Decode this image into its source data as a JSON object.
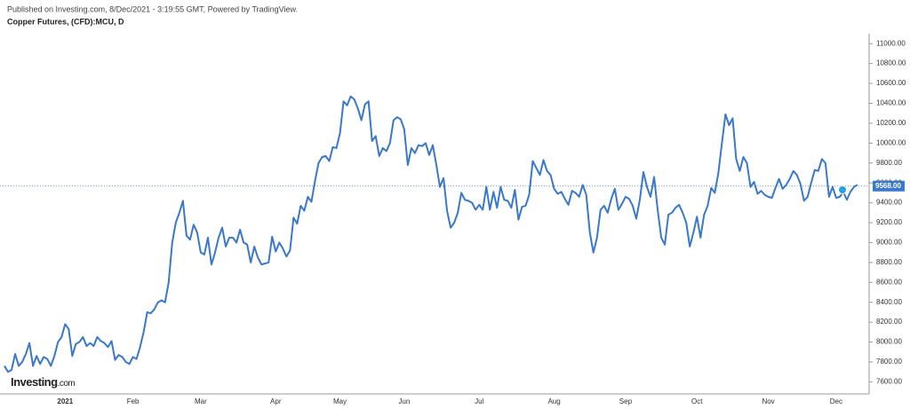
{
  "chart_data": {
    "type": "line",
    "published": "Published on Investing.com, 8/Dec/2021 - 3:19:55 GMT, Powered by TradingView.",
    "title": "Copper Futures, (CFD):MCU, D",
    "logo": {
      "brand": "Investing",
      "suffix": ".com"
    },
    "color": "#3a78c9",
    "categories": [
      null,
      null,
      null,
      null,
      null,
      null,
      null,
      null,
      null,
      null,
      null,
      null,
      null,
      null,
      null,
      null,
      null,
      "2021",
      null,
      null,
      null,
      null,
      null,
      null,
      null,
      null,
      null,
      null,
      null,
      null,
      null,
      null,
      null,
      null,
      null,
      null,
      "Feb",
      null,
      null,
      null,
      null,
      null,
      null,
      null,
      null,
      null,
      null,
      null,
      null,
      null,
      null,
      null,
      null,
      null,
      null,
      "Mar",
      null,
      null,
      null,
      null,
      null,
      null,
      null,
      null,
      null,
      null,
      null,
      null,
      null,
      null,
      null,
      null,
      null,
      null,
      null,
      null,
      "Apr",
      null,
      null,
      null,
      null,
      null,
      null,
      null,
      null,
      null,
      null,
      null,
      null,
      null,
      null,
      null,
      null,
      null,
      "May",
      null,
      null,
      null,
      null,
      null,
      null,
      null,
      null,
      null,
      null,
      null,
      null,
      null,
      null,
      null,
      null,
      null,
      "Jun",
      null,
      null,
      null,
      null,
      null,
      null,
      null,
      null,
      null,
      null,
      null,
      null,
      null,
      null,
      null,
      null,
      null,
      null,
      null,
      null,
      "Jul",
      null,
      null,
      null,
      null,
      null,
      null,
      null,
      null,
      null,
      null,
      null,
      null,
      null,
      null,
      null,
      null,
      null,
      null,
      null,
      null,
      "Aug",
      null,
      null,
      null,
      null,
      null,
      null,
      null,
      null,
      null,
      null,
      null,
      null,
      null,
      null,
      null,
      null,
      null,
      null,
      null,
      "Sep",
      null,
      null,
      null,
      null,
      null,
      null,
      null,
      null,
      null,
      null,
      null,
      null,
      null,
      null,
      null,
      null,
      null,
      null,
      null,
      "Oct",
      null,
      null,
      null,
      null,
      null,
      null,
      null,
      null,
      null,
      null,
      null,
      null,
      null,
      null,
      null,
      null,
      null,
      null,
      null,
      "Nov",
      null,
      null,
      null,
      null,
      null,
      null,
      null,
      null,
      null,
      null,
      null,
      null,
      null,
      null,
      null,
      null,
      null,
      null,
      "Dec",
      null,
      null,
      null,
      null,
      null,
      null
    ],
    "values": [
      7760,
      7700,
      7720,
      7880,
      7760,
      7800,
      7880,
      7990,
      7760,
      7860,
      7780,
      7850,
      7830,
      7760,
      7860,
      8000,
      8050,
      8180,
      8130,
      7860,
      7980,
      8000,
      8050,
      7960,
      7990,
      7960,
      8050,
      8010,
      7990,
      7950,
      8010,
      7820,
      7870,
      7850,
      7800,
      7780,
      7850,
      7830,
      7950,
      8100,
      8300,
      8290,
      8330,
      8400,
      8420,
      8400,
      8600,
      9000,
      9200,
      9300,
      9420,
      9070,
      9030,
      9180,
      9100,
      8900,
      8880,
      9050,
      8780,
      8900,
      9050,
      9150,
      8960,
      9050,
      9050,
      9000,
      9130,
      9000,
      8980,
      8800,
      8960,
      8850,
      8780,
      8790,
      8800,
      9060,
      8910,
      9000,
      8940,
      8860,
      8920,
      9250,
      9190,
      9370,
      9320,
      9460,
      9410,
      9620,
      9800,
      9860,
      9870,
      9820,
      9960,
      9950,
      10100,
      10420,
      10380,
      10470,
      10440,
      10350,
      10230,
      10390,
      10420,
      10020,
      10070,
      9870,
      9950,
      9920,
      10000,
      10230,
      10260,
      10240,
      10140,
      9780,
      9950,
      9900,
      9980,
      9970,
      10000,
      9880,
      9980,
      9780,
      9560,
      9650,
      9320,
      9150,
      9200,
      9300,
      9500,
      9430,
      9420,
      9400,
      9330,
      9380,
      9330,
      9560,
      9330,
      9510,
      9350,
      9560,
      9430,
      9420,
      9350,
      9530,
      9230,
      9360,
      9370,
      9480,
      9820,
      9750,
      9680,
      9830,
      9720,
      9680,
      9540,
      9490,
      9510,
      9440,
      9380,
      9520,
      9500,
      9460,
      9580,
      9480,
      9100,
      8900,
      9050,
      9330,
      9370,
      9300,
      9440,
      9540,
      9330,
      9390,
      9460,
      9440,
      9370,
      9240,
      9430,
      9710,
      9560,
      9460,
      9660,
      9330,
      9050,
      8980,
      9280,
      9300,
      9350,
      9380,
      9300,
      9200,
      8960,
      9100,
      9260,
      9050,
      9280,
      9370,
      9550,
      9500,
      9700,
      10000,
      10290,
      10180,
      10250,
      9840,
      9720,
      9860,
      9800,
      9560,
      9610,
      9490,
      9520,
      9480,
      9460,
      9450,
      9550,
      9640,
      9540,
      9580,
      9640,
      9720,
      9680,
      9590,
      9420,
      9460,
      9600,
      9730,
      9720,
      9840,
      9800,
      9460,
      9560,
      9450,
      9460,
      9510,
      9430,
      9510,
      9560,
      9580
    ],
    "ylim": [
      7500,
      11100
    ],
    "yticks": [
      {
        "value": 7600,
        "label": "7600.00"
      },
      {
        "value": 7800,
        "label": "7800.00"
      },
      {
        "value": 8000,
        "label": "8000.00"
      },
      {
        "value": 8200,
        "label": "8200.00"
      },
      {
        "value": 8400,
        "label": "8400.00"
      },
      {
        "value": 8600,
        "label": "8600.00"
      },
      {
        "value": 8800,
        "label": "8800.00"
      },
      {
        "value": 9000,
        "label": "9000.00"
      },
      {
        "value": 9200,
        "label": "9200.00"
      },
      {
        "value": 9400,
        "label": "9400.00"
      },
      {
        "value": 9600,
        "label": "9600.00"
      },
      {
        "value": 9800,
        "label": "9800.00"
      },
      {
        "value": 10000,
        "label": "10000.00"
      },
      {
        "value": 10200,
        "label": "10200.00"
      },
      {
        "value": 10400,
        "label": "10400.00"
      },
      {
        "value": 10600,
        "label": "10600.00"
      },
      {
        "value": 10800,
        "label": "10800.00"
      },
      {
        "value": 11000,
        "label": "11000.00"
      }
    ],
    "last_price": {
      "value": 9568,
      "label": "9568.00"
    },
    "grid": false
  }
}
